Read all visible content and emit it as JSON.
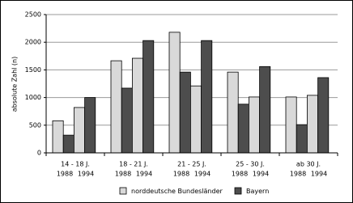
{
  "chart_data": {
    "type": "grouped-bar",
    "y_label": "absolute Zahl (n)",
    "categories": [
      "14 - 18 J.",
      "18 - 21 J.",
      "21 - 25 J.",
      "25 - 30 J.",
      "ab 30 J."
    ],
    "years": [
      "1988",
      "1994"
    ],
    "series": [
      {
        "name": "norddeutsche Bundesländer",
        "color": "#d9d9d9",
        "values": [
          [
            580,
            820
          ],
          [
            1665,
            1710
          ],
          [
            2180,
            1210
          ],
          [
            1460,
            1010
          ],
          [
            1010,
            1040
          ]
        ]
      },
      {
        "name": "Bayern",
        "color": "#4d4d4d",
        "values": [
          [
            320,
            1000
          ],
          [
            1170,
            2030
          ],
          [
            1460,
            2030
          ],
          [
            880,
            1560
          ],
          [
            510,
            1360
          ]
        ]
      }
    ],
    "ylim": [
      0,
      2500
    ],
    "yticks": [
      0,
      500,
      1000,
      1500,
      2000,
      2500
    ],
    "grid": true
  }
}
